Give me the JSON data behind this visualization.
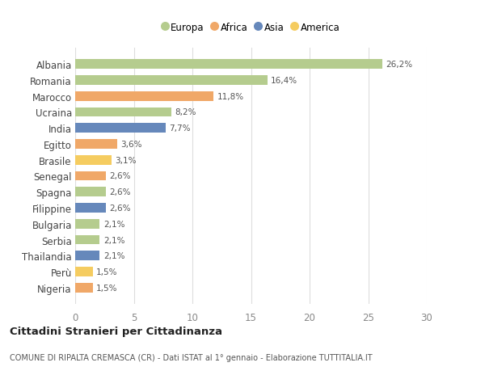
{
  "countries": [
    "Albania",
    "Romania",
    "Marocco",
    "Ucraina",
    "India",
    "Egitto",
    "Brasile",
    "Senegal",
    "Spagna",
    "Filippine",
    "Bulgaria",
    "Serbia",
    "Thailandia",
    "Perù",
    "Nigeria"
  ],
  "values": [
    26.2,
    16.4,
    11.8,
    8.2,
    7.7,
    3.6,
    3.1,
    2.6,
    2.6,
    2.6,
    2.1,
    2.1,
    2.1,
    1.5,
    1.5
  ],
  "labels": [
    "26,2%",
    "16,4%",
    "11,8%",
    "8,2%",
    "7,7%",
    "3,6%",
    "3,1%",
    "2,6%",
    "2,6%",
    "2,6%",
    "2,1%",
    "2,1%",
    "2,1%",
    "1,5%",
    "1,5%"
  ],
  "continents": [
    "Europa",
    "Europa",
    "Africa",
    "Europa",
    "Asia",
    "Africa",
    "America",
    "Africa",
    "Europa",
    "Asia",
    "Europa",
    "Europa",
    "Asia",
    "America",
    "Africa"
  ],
  "continent_colors": {
    "Europa": "#b5cc8e",
    "Africa": "#f0a868",
    "Asia": "#6688bb",
    "America": "#f5cc60"
  },
  "legend_order": [
    "Europa",
    "Africa",
    "Asia",
    "America"
  ],
  "title": "Cittadini Stranieri per Cittadinanza",
  "subtitle": "COMUNE DI RIPALTA CREMASCA (CR) - Dati ISTAT al 1° gennaio - Elaborazione TUTTITALIA.IT",
  "xlim": [
    0,
    30
  ],
  "xticks": [
    0,
    5,
    10,
    15,
    20,
    25,
    30
  ],
  "background_color": "#ffffff",
  "grid_color": "#dddddd"
}
